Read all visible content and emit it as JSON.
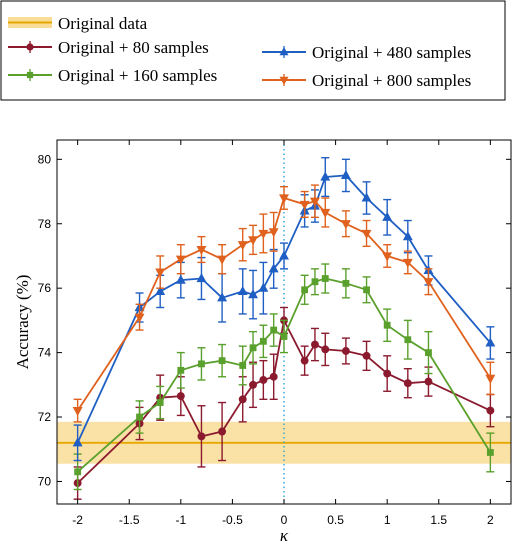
{
  "chart_data": {
    "type": "line",
    "xlabel": "κ",
    "ylabel": "Accuracy (%)",
    "xlim": [
      -2.2,
      2.2
    ],
    "ylim": [
      69.3,
      80.6
    ],
    "x_ticks": [
      -2,
      -1.5,
      -1,
      -0.5,
      0,
      0.5,
      1,
      1.5,
      2
    ],
    "x_tick_labels": [
      "-2",
      "-1.5",
      "-1",
      "-0.5",
      "0",
      "0.5",
      "1",
      "1.5",
      "2"
    ],
    "y_ticks": [
      70,
      72,
      74,
      76,
      78,
      80
    ],
    "y_tick_labels": [
      "70",
      "72",
      "74",
      "76",
      "78",
      "80"
    ],
    "grid": false,
    "legend_placement": "top",
    "vline_x": 0,
    "baseline": {
      "name": "Original data",
      "value": 71.2,
      "band": [
        70.55,
        71.85
      ],
      "color": "#e8a800",
      "band_color": "#f9dc96"
    },
    "series": [
      {
        "name": "Original + 80 samples",
        "color": "#8b1a2e",
        "marker": "circle",
        "x": [
          -2,
          -1.4,
          -1.2,
          -1,
          -0.8,
          -0.6,
          -0.4,
          -0.3,
          -0.2,
          -0.1,
          0,
          0.2,
          0.3,
          0.4,
          0.6,
          0.8,
          1,
          1.2,
          1.4,
          2
        ],
        "y": [
          69.95,
          71.8,
          72.6,
          72.65,
          71.4,
          71.55,
          72.55,
          73.0,
          73.15,
          73.25,
          75.0,
          73.75,
          74.25,
          74.1,
          74.05,
          73.9,
          73.35,
          73.05,
          73.1,
          72.2
        ],
        "err": [
          0.5,
          0.5,
          0.7,
          0.6,
          0.95,
          0.9,
          0.7,
          0.7,
          0.6,
          0.7,
          0.4,
          0.45,
          0.5,
          0.5,
          0.4,
          0.45,
          0.55,
          0.45,
          0.45,
          0.5
        ]
      },
      {
        "name": "Original + 160 samples",
        "color": "#5aa02c",
        "marker": "square",
        "x": [
          -2,
          -1.4,
          -1.2,
          -1,
          -0.8,
          -0.6,
          -0.4,
          -0.3,
          -0.2,
          -0.1,
          0,
          0.2,
          0.3,
          0.4,
          0.6,
          0.8,
          1,
          1.2,
          1.4,
          2
        ],
        "y": [
          70.3,
          72.0,
          72.45,
          73.45,
          73.65,
          73.75,
          73.6,
          74.15,
          74.35,
          74.7,
          74.5,
          75.95,
          76.2,
          76.3,
          76.15,
          75.95,
          74.85,
          74.4,
          74.0,
          70.9
        ],
        "err": [
          0.55,
          0.5,
          0.5,
          0.55,
          0.5,
          0.5,
          0.6,
          0.5,
          0.5,
          0.5,
          0.5,
          0.45,
          0.4,
          0.45,
          0.45,
          0.4,
          0.5,
          0.6,
          0.65,
          0.6
        ]
      },
      {
        "name": "Original + 480 samples",
        "color": "#1f5fc4",
        "marker": "triangle-up",
        "x": [
          -2,
          -1.4,
          -1.2,
          -1,
          -0.8,
          -0.6,
          -0.4,
          -0.3,
          -0.2,
          -0.1,
          0,
          0.2,
          0.3,
          0.4,
          0.6,
          0.8,
          1,
          1.2,
          1.4,
          2
        ],
        "y": [
          71.2,
          75.4,
          75.9,
          76.25,
          76.3,
          75.7,
          75.9,
          75.8,
          76.0,
          76.6,
          77.0,
          78.4,
          78.55,
          79.45,
          79.5,
          78.8,
          78.2,
          77.6,
          76.55,
          74.3
        ],
        "err": [
          0.55,
          0.45,
          0.5,
          0.55,
          0.65,
          0.75,
          0.7,
          0.75,
          0.8,
          0.6,
          0.4,
          0.5,
          0.5,
          0.6,
          0.5,
          0.5,
          0.55,
          0.5,
          0.45,
          0.5
        ]
      },
      {
        "name": "Original + 800 samples",
        "color": "#e0611d",
        "marker": "triangle-down",
        "x": [
          -2,
          -1.4,
          -1.2,
          -1,
          -0.8,
          -0.6,
          -0.4,
          -0.3,
          -0.2,
          -0.1,
          0,
          0.2,
          0.3,
          0.4,
          0.6,
          0.8,
          1,
          1.2,
          1.4,
          2
        ],
        "y": [
          72.2,
          75.1,
          76.5,
          76.9,
          77.2,
          76.9,
          77.35,
          77.5,
          77.7,
          77.75,
          78.8,
          78.6,
          78.7,
          78.35,
          78.0,
          77.7,
          77.0,
          76.8,
          76.2,
          73.2
        ],
        "err": [
          0.35,
          0.4,
          0.5,
          0.45,
          0.4,
          0.45,
          0.5,
          0.45,
          0.6,
          0.6,
          0.35,
          0.4,
          0.5,
          0.45,
          0.4,
          0.4,
          0.35,
          0.35,
          0.4,
          0.5
        ]
      }
    ]
  }
}
